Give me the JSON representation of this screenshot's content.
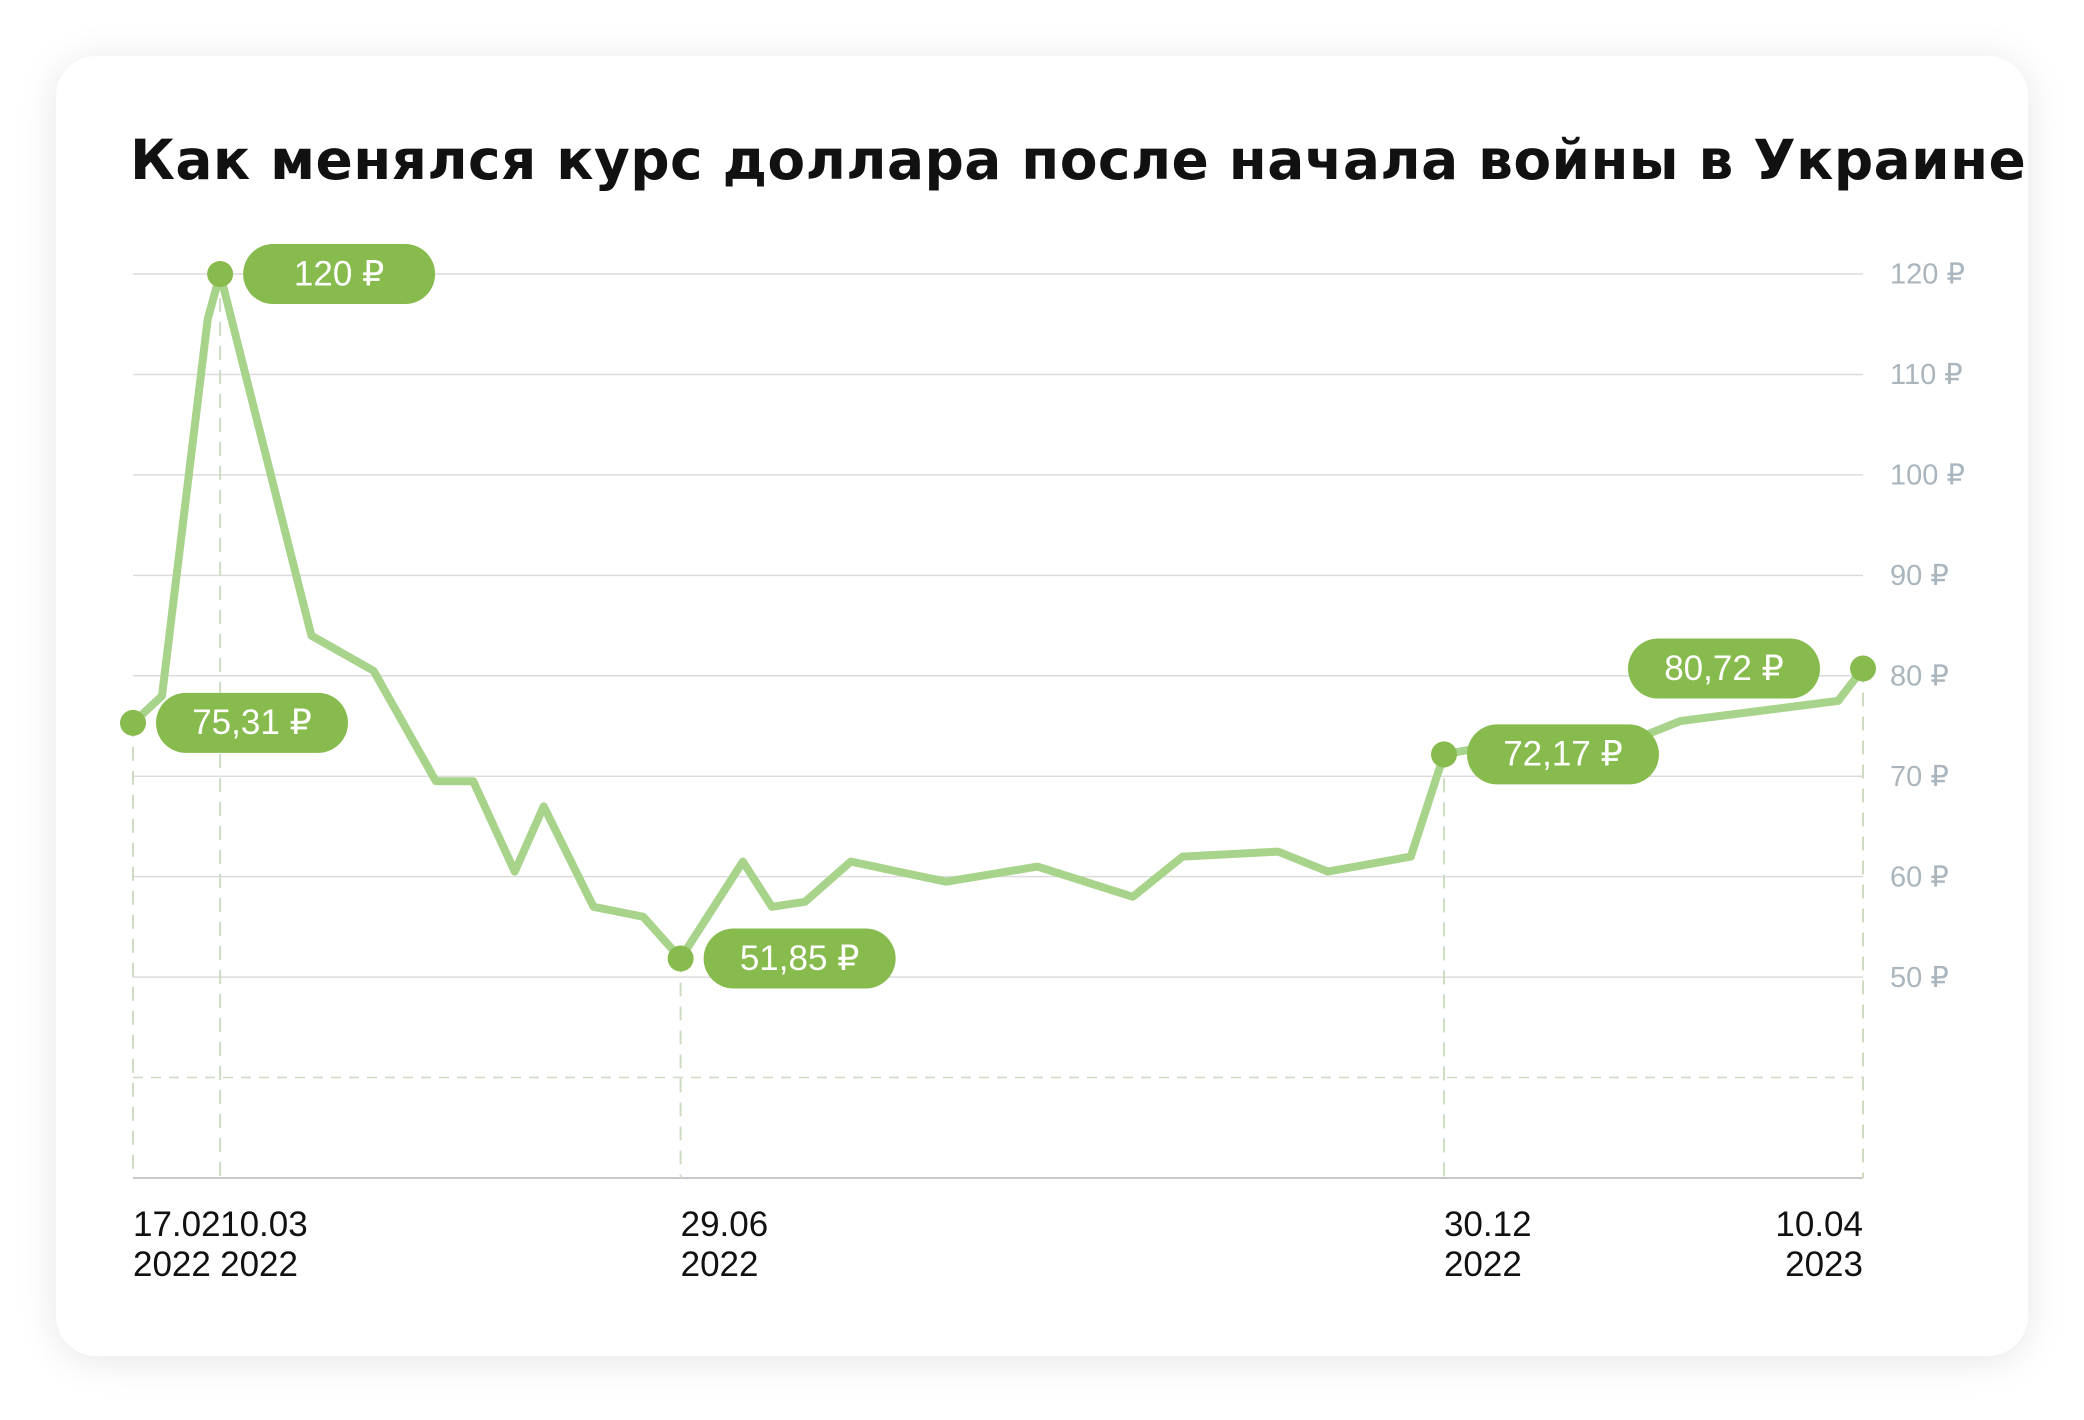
{
  "title": "Как менялся курс доллара после начала войны в Украине",
  "colors": {
    "line": "#a8d38a",
    "marker": "#87bb4d",
    "pill": "#87bb4d",
    "grid": "#dcdcdc",
    "guide": "#cfdcc4",
    "tick_text": "#aab5bd",
    "axis_text": "#111111"
  },
  "chart_data": {
    "type": "line",
    "title": "Как менялся курс доллара после начала войны в Украине",
    "ylabel": "",
    "xlabel": "",
    "ylim": [
      30,
      120
    ],
    "grid": true,
    "y_ticks": [
      {
        "value": 120,
        "label": "120 ₽"
      },
      {
        "value": 110,
        "label": "110 ₽"
      },
      {
        "value": 100,
        "label": "100 ₽"
      },
      {
        "value": 90,
        "label": "90 ₽"
      },
      {
        "value": 80,
        "label": "80 ₽"
      },
      {
        "value": 70,
        "label": "70 ₽"
      },
      {
        "value": 60,
        "label": "60 ₽"
      },
      {
        "value": 50,
        "label": "50 ₽"
      }
    ],
    "x": [
      "2022-02-17",
      "2022-02-24",
      "2022-03-07",
      "2022-03-10",
      "2022-04-01",
      "2022-04-16",
      "2022-05-01",
      "2022-05-10",
      "2022-05-20",
      "2022-05-27",
      "2022-06-08",
      "2022-06-20",
      "2022-06-29",
      "2022-07-14",
      "2022-07-21",
      "2022-07-29",
      "2022-08-09",
      "2022-09-01",
      "2022-09-23",
      "2022-10-16",
      "2022-10-28",
      "2022-11-20",
      "2022-12-02",
      "2022-12-22",
      "2022-12-30",
      "2023-01-10",
      "2023-02-04",
      "2023-02-25",
      "2023-04-04",
      "2023-04-10"
    ],
    "series": [
      {
        "values": [
          75.31,
          78.0,
          115.5,
          120.0,
          84.0,
          80.5,
          69.5,
          69.5,
          60.5,
          67.0,
          57.0,
          56.0,
          51.85,
          61.5,
          57.0,
          57.5,
          61.5,
          59.5,
          61.0,
          58.0,
          62.0,
          62.5,
          60.5,
          62.0,
          72.17,
          73.0,
          72.0,
          75.5,
          77.5,
          80.72
        ]
      }
    ],
    "x_labels": [
      {
        "date": "2022-02-17",
        "line1": "17.02",
        "line2": "2022",
        "align": "start"
      },
      {
        "date": "2022-03-10",
        "line1": "10.03",
        "line2": "2022",
        "align": "start"
      },
      {
        "date": "2022-06-29",
        "line1": "29.06",
        "line2": "2022",
        "align": "start"
      },
      {
        "date": "2022-12-30",
        "line1": "30.12",
        "line2": "2022",
        "align": "start"
      },
      {
        "date": "2023-04-10",
        "line1": "10.04",
        "line2": "2023",
        "align": "end"
      }
    ],
    "annotations": [
      {
        "date": "2022-02-17",
        "value": 75.31,
        "label": "75,31 ₽",
        "side": "right"
      },
      {
        "date": "2022-03-10",
        "value": 120.0,
        "label": "120 ₽",
        "side": "right"
      },
      {
        "date": "2022-06-29",
        "value": 51.85,
        "label": "51,85 ₽",
        "side": "right"
      },
      {
        "date": "2022-12-30",
        "value": 72.17,
        "label": "72,17 ₽",
        "side": "right"
      },
      {
        "date": "2023-04-10",
        "value": 80.72,
        "label": "80,72 ₽",
        "side": "left"
      }
    ]
  }
}
